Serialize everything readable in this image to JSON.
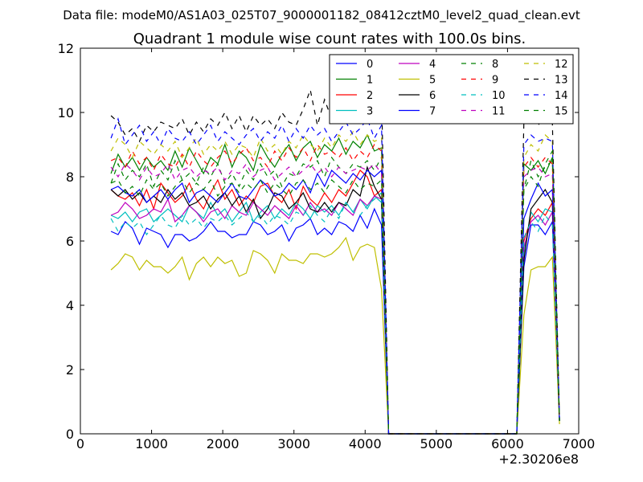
{
  "suptitle": "Data file: modeM0/AS1A03_025T07_9000001182_08412cztM0_level2_quad_clean.evt",
  "chart_data": {
    "type": "line",
    "title": "Quadrant 1 module wise count rates with 100.0s bins.",
    "xlabel": "",
    "ylabel": "",
    "x_offset_label": "+2.30206e8",
    "xlim": [
      0,
      7000
    ],
    "ylim": [
      0,
      12
    ],
    "x_ticks": [
      0,
      1000,
      2000,
      3000,
      4000,
      5000,
      6000,
      7000
    ],
    "y_ticks": [
      0,
      2,
      4,
      6,
      8,
      10,
      12
    ],
    "grid": false,
    "legend_position": "top-right",
    "x": [
      430,
      530,
      630,
      730,
      830,
      930,
      1030,
      1130,
      1230,
      1330,
      1430,
      1530,
      1630,
      1730,
      1830,
      1930,
      2030,
      2130,
      2230,
      2330,
      2430,
      2530,
      2630,
      2730,
      2830,
      2930,
      3030,
      3130,
      3230,
      3330,
      3430,
      3530,
      3630,
      3730,
      3830,
      3930,
      4030,
      4130,
      4230,
      4330,
      4430,
      4530,
      4630,
      4730,
      4830,
      4930,
      5030,
      5130,
      5230,
      5330,
      5430,
      5530,
      5630,
      5730,
      5830,
      5930,
      6030,
      6130,
      6230,
      6330,
      6430,
      6530,
      6630,
      6730
    ],
    "series": [
      {
        "name": "0",
        "color": "#0000ff",
        "dash": false,
        "values": [
          6.3,
          6.2,
          6.6,
          6.4,
          5.9,
          6.4,
          6.3,
          6.2,
          5.8,
          6.2,
          6.2,
          6.0,
          6.1,
          6.3,
          6.6,
          6.3,
          6.3,
          6.1,
          6.2,
          6.2,
          6.6,
          6.5,
          6.2,
          6.3,
          6.5,
          6.0,
          6.4,
          6.5,
          6.7,
          6.2,
          6.4,
          6.2,
          6.6,
          6.5,
          6.3,
          6.8,
          6.4,
          7.0,
          6.5,
          0.0,
          0,
          0,
          0,
          0,
          0,
          0,
          0,
          0,
          0,
          0,
          0,
          0,
          0,
          0,
          0,
          0,
          0,
          0,
          5.2,
          6.5,
          6.5,
          6.2,
          6.6,
          0.4
        ]
      },
      {
        "name": "1",
        "color": "#008000",
        "dash": false,
        "values": [
          8.1,
          8.7,
          8.3,
          8.6,
          8.2,
          8.6,
          8.3,
          8.5,
          8.2,
          8.8,
          8.3,
          8.9,
          8.5,
          8.1,
          8.6,
          8.4,
          9.0,
          8.3,
          8.8,
          8.6,
          8.2,
          9.0,
          8.6,
          8.3,
          8.7,
          9.0,
          8.5,
          8.9,
          9.1,
          8.6,
          9.0,
          8.8,
          9.2,
          8.7,
          9.1,
          8.9,
          9.3,
          8.8,
          8.9,
          0.0,
          0,
          0,
          0,
          0,
          0,
          0,
          0,
          0,
          0,
          0,
          0,
          0,
          0,
          0,
          0,
          0,
          0,
          0,
          8.4,
          8.2,
          8.5,
          8.1,
          8.6,
          0.4
        ]
      },
      {
        "name": "2",
        "color": "#ff0000",
        "dash": false,
        "values": [
          7.6,
          7.4,
          7.3,
          7.5,
          7.1,
          7.6,
          7.0,
          7.8,
          7.5,
          7.2,
          7.4,
          7.8,
          7.3,
          7.0,
          7.5,
          7.9,
          7.3,
          7.6,
          7.1,
          7.4,
          7.2,
          7.7,
          7.8,
          7.4,
          7.2,
          7.6,
          7.0,
          7.7,
          7.3,
          7.1,
          7.5,
          7.2,
          7.6,
          7.4,
          7.8,
          8.2,
          8.0,
          7.4,
          7.6,
          0.0,
          0,
          0,
          0,
          0,
          0,
          0,
          0,
          0,
          0,
          0,
          0,
          0,
          0,
          0,
          0,
          0,
          0,
          0,
          6.0,
          6.7,
          7.0,
          6.8,
          7.2,
          0.4
        ]
      },
      {
        "name": "3",
        "color": "#00bfbf",
        "dash": false,
        "values": [
          6.8,
          6.7,
          6.9,
          6.6,
          6.9,
          7.0,
          6.6,
          6.8,
          7.0,
          6.8,
          6.6,
          7.1,
          6.9,
          6.7,
          7.2,
          6.8,
          7.0,
          6.6,
          6.9,
          7.2,
          6.6,
          6.9,
          7.1,
          6.7,
          7.0,
          6.8,
          7.2,
          7.0,
          6.7,
          7.1,
          6.9,
          7.1,
          6.8,
          7.2,
          6.9,
          7.3,
          7.0,
          7.4,
          7.2,
          0.0,
          0,
          0,
          0,
          0,
          0,
          0,
          0,
          0,
          0,
          0,
          0,
          0,
          0,
          0,
          0,
          0,
          0,
          0,
          5.6,
          6.9,
          6.6,
          7.0,
          6.9,
          0.4
        ]
      },
      {
        "name": "4",
        "color": "#bf00bf",
        "dash": false,
        "values": [
          6.8,
          6.9,
          7.2,
          7.0,
          6.7,
          6.8,
          7.0,
          6.9,
          7.3,
          6.6,
          6.8,
          7.1,
          6.9,
          6.6,
          6.9,
          7.0,
          6.7,
          7.1,
          6.9,
          6.8,
          7.2,
          7.0,
          6.8,
          7.1,
          6.9,
          6.7,
          7.1,
          6.8,
          7.2,
          6.9,
          7.0,
          6.8,
          7.2,
          7.0,
          6.8,
          7.3,
          7.1,
          7.4,
          7.3,
          0.0,
          0,
          0,
          0,
          0,
          0,
          0,
          0,
          0,
          0,
          0,
          0,
          0,
          0,
          0,
          0,
          0,
          0,
          0,
          5.8,
          6.6,
          6.8,
          6.5,
          6.9,
          0.4
        ]
      },
      {
        "name": "5",
        "color": "#bfbf00",
        "dash": false,
        "values": [
          5.1,
          5.3,
          5.6,
          5.5,
          5.1,
          5.4,
          5.2,
          5.2,
          5.0,
          5.2,
          5.5,
          4.8,
          5.3,
          5.5,
          5.2,
          5.5,
          5.3,
          5.4,
          4.9,
          5.0,
          5.7,
          5.6,
          5.4,
          5.0,
          5.6,
          5.4,
          5.4,
          5.3,
          5.6,
          5.6,
          5.5,
          5.6,
          5.8,
          6.1,
          5.4,
          5.8,
          5.9,
          5.8,
          4.5,
          0.0,
          0,
          0,
          0,
          0,
          0,
          0,
          0,
          0,
          0,
          0,
          0,
          0,
          0,
          0,
          0,
          0,
          0,
          0,
          3.7,
          5.1,
          5.2,
          5.2,
          5.5,
          0.3
        ]
      },
      {
        "name": "6",
        "color": "#000000",
        "dash": false,
        "values": [
          7.6,
          7.4,
          7.6,
          7.3,
          7.5,
          7.2,
          7.4,
          7.2,
          7.6,
          7.3,
          7.5,
          7.1,
          7.2,
          7.4,
          7.0,
          7.3,
          7.5,
          7.1,
          7.4,
          6.9,
          7.3,
          6.7,
          7.0,
          7.5,
          7.4,
          7.0,
          7.2,
          7.5,
          7.0,
          6.9,
          7.2,
          6.9,
          7.2,
          7.1,
          7.6,
          7.4,
          8.3,
          7.7,
          7.3,
          0.0,
          0,
          0,
          0,
          0,
          0,
          0,
          0,
          0,
          0,
          0,
          0,
          0,
          0,
          0,
          0,
          0,
          0,
          0,
          5.4,
          7.0,
          7.3,
          7.6,
          7.2,
          0.4
        ]
      },
      {
        "name": "7",
        "color": "#0000ff",
        "dash": false,
        "values": [
          7.6,
          7.7,
          7.5,
          7.4,
          7.6,
          7.2,
          7.4,
          7.6,
          7.3,
          7.6,
          7.8,
          7.2,
          7.5,
          7.6,
          7.4,
          7.2,
          7.5,
          7.8,
          7.4,
          7.3,
          7.6,
          7.9,
          7.7,
          7.4,
          7.5,
          7.8,
          7.6,
          7.9,
          7.5,
          8.1,
          7.7,
          8.2,
          8.0,
          7.8,
          8.1,
          7.9,
          8.2,
          8.0,
          8.2,
          0.0,
          0,
          0,
          0,
          0,
          0,
          0,
          0,
          0,
          0,
          0,
          0,
          0,
          0,
          0,
          0,
          0,
          0,
          0,
          6.7,
          7.3,
          7.8,
          7.4,
          7.6,
          0.4
        ]
      },
      {
        "name": "8",
        "color": "#008000",
        "dash": true,
        "values": [
          7.8,
          8.4,
          7.9,
          8.2,
          8.0,
          8.4,
          7.7,
          8.2,
          7.9,
          8.5,
          7.9,
          8.1,
          7.8,
          8.3,
          8.0,
          8.4,
          7.8,
          8.1,
          7.7,
          8.2,
          7.9,
          8.4,
          8.0,
          8.2,
          7.7,
          8.1,
          8.0,
          8.4,
          8.3,
          8.5,
          8.0,
          8.6,
          8.3,
          8.1,
          8.4,
          8.3,
          8.5,
          8.2,
          8.6,
          0.0,
          0,
          0,
          0,
          0,
          0,
          0,
          0,
          0,
          0,
          0,
          0,
          0,
          0,
          0,
          0,
          0,
          0,
          0,
          7.6,
          8.5,
          8.0,
          8.3,
          8.5,
          0.4
        ]
      },
      {
        "name": "9",
        "color": "#ff0000",
        "dash": true,
        "values": [
          8.5,
          8.6,
          8.3,
          8.8,
          8.4,
          8.6,
          8.2,
          8.7,
          8.4,
          8.3,
          8.7,
          8.3,
          8.8,
          8.5,
          8.3,
          8.6,
          8.8,
          8.4,
          8.7,
          8.9,
          8.5,
          8.6,
          8.3,
          8.8,
          8.5,
          8.9,
          8.6,
          8.9,
          8.5,
          9.0,
          8.7,
          8.8,
          8.6,
          8.9,
          8.5,
          8.8,
          8.6,
          9.0,
          8.8,
          0.0,
          0,
          0,
          0,
          0,
          0,
          0,
          0,
          0,
          0,
          0,
          0,
          0,
          0,
          0,
          0,
          0,
          0,
          0,
          8.3,
          8.6,
          8.3,
          8.6,
          8.4,
          0.4
        ]
      },
      {
        "name": "10",
        "color": "#00bfbf",
        "dash": true,
        "values": [
          6.7,
          6.3,
          6.6,
          6.4,
          6.6,
          6.2,
          6.5,
          6.8,
          6.5,
          6.4,
          6.8,
          6.5,
          6.7,
          6.4,
          6.7,
          6.6,
          6.8,
          6.5,
          6.7,
          6.9,
          6.6,
          6.8,
          6.5,
          6.8,
          6.7,
          6.5,
          6.9,
          6.8,
          7.1,
          6.8,
          6.6,
          7.0,
          6.7,
          7.2,
          6.9,
          6.8,
          7.1,
          7.3,
          7.5,
          0.0,
          0,
          0,
          0,
          0,
          0,
          0,
          0,
          0,
          0,
          0,
          0,
          0,
          0,
          0,
          0,
          0,
          0,
          0,
          6.1,
          6.6,
          6.3,
          6.8,
          6.5,
          0.4
        ]
      },
      {
        "name": "11",
        "color": "#bf00bf",
        "dash": true,
        "values": [
          8.3,
          8.0,
          8.4,
          8.2,
          7.9,
          8.3,
          8.0,
          8.1,
          8.4,
          7.9,
          8.2,
          8.3,
          8.0,
          8.2,
          8.1,
          8.3,
          7.9,
          8.2,
          8.1,
          8.4,
          8.0,
          8.2,
          8.3,
          7.9,
          8.1,
          8.3,
          8.0,
          8.2,
          8.4,
          8.1,
          8.3,
          8.0,
          8.3,
          8.1,
          8.2,
          8.3,
          8.2,
          8.4,
          8.1,
          0.0,
          0,
          0,
          0,
          0,
          0,
          0,
          0,
          0,
          0,
          0,
          0,
          0,
          0,
          0,
          0,
          0,
          0,
          0,
          8.0,
          8.2,
          8.3,
          8.0,
          8.1,
          0.4
        ]
      },
      {
        "name": "12",
        "color": "#bfbf00",
        "dash": true,
        "values": [
          8.8,
          9.2,
          9.0,
          8.6,
          9.1,
          8.9,
          8.7,
          9.0,
          8.8,
          9.1,
          8.6,
          8.9,
          9.2,
          8.7,
          9.0,
          8.8,
          9.1,
          8.7,
          9.0,
          8.9,
          8.6,
          9.2,
          8.8,
          9.0,
          8.7,
          9.1,
          8.9,
          9.3,
          9.0,
          8.8,
          9.2,
          8.9,
          9.3,
          9.1,
          9.4,
          9.0,
          9.3,
          9.1,
          9.2,
          0.0,
          0,
          0,
          0,
          0,
          0,
          0,
          0,
          0,
          0,
          0,
          0,
          0,
          0,
          0,
          0,
          0,
          0,
          0,
          8.6,
          9.0,
          8.8,
          9.3,
          9.1,
          0.4
        ]
      },
      {
        "name": "13",
        "color": "#000000",
        "dash": true,
        "values": [
          9.9,
          9.7,
          9.3,
          9.5,
          9.1,
          9.6,
          9.4,
          9.7,
          9.6,
          9.5,
          9.8,
          9.3,
          9.7,
          9.4,
          9.8,
          9.6,
          10.0,
          9.5,
          9.9,
          9.4,
          9.9,
          9.6,
          9.8,
          9.5,
          10.0,
          9.7,
          9.6,
          10.1,
          10.7,
          9.6,
          10.4,
          9.8,
          10.3,
          9.9,
          10.2,
          10.0,
          10.5,
          10.2,
          10.6,
          0.0,
          0,
          0,
          0,
          0,
          0,
          0,
          0,
          0,
          0,
          0,
          0,
          0,
          0,
          0,
          0,
          0,
          0,
          0,
          9.7,
          9.9,
          9.6,
          9.9,
          9.7,
          0.4
        ]
      },
      {
        "name": "14",
        "color": "#0000ff",
        "dash": true,
        "values": [
          9.2,
          9.8,
          9.0,
          9.3,
          9.6,
          9.1,
          9.4,
          9.0,
          9.5,
          9.2,
          9.1,
          9.4,
          9.0,
          9.3,
          9.6,
          9.1,
          9.4,
          9.2,
          9.0,
          9.3,
          9.5,
          9.1,
          9.4,
          9.2,
          9.6,
          9.1,
          9.5,
          9.2,
          9.6,
          9.3,
          9.5,
          9.1,
          9.4,
          9.7,
          9.3,
          9.5,
          9.8,
          9.2,
          9.6,
          0.0,
          0,
          0,
          0,
          0,
          0,
          0,
          0,
          0,
          0,
          0,
          0,
          0,
          0,
          0,
          0,
          0,
          0,
          0,
          9.0,
          9.3,
          9.1,
          9.2,
          9.1,
          0.4
        ]
      },
      {
        "name": "15",
        "color": "#008000",
        "dash": true,
        "values": [
          7.8,
          7.9,
          7.5,
          7.7,
          7.4,
          7.9,
          7.6,
          7.8,
          7.4,
          7.7,
          7.9,
          7.5,
          7.8,
          7.6,
          7.9,
          7.4,
          7.7,
          7.8,
          7.5,
          7.8,
          7.6,
          7.9,
          7.5,
          7.8,
          7.6,
          7.4,
          7.8,
          7.9,
          7.6,
          7.8,
          7.5,
          7.9,
          7.7,
          7.5,
          7.9,
          7.6,
          7.8,
          7.7,
          7.9,
          0.0,
          0,
          0,
          0,
          0,
          0,
          0,
          0,
          0,
          0,
          0,
          0,
          0,
          0,
          0,
          0,
          0,
          0,
          0,
          7.6,
          8.0,
          7.7,
          8.4,
          8.8,
          0.4
        ]
      }
    ]
  }
}
